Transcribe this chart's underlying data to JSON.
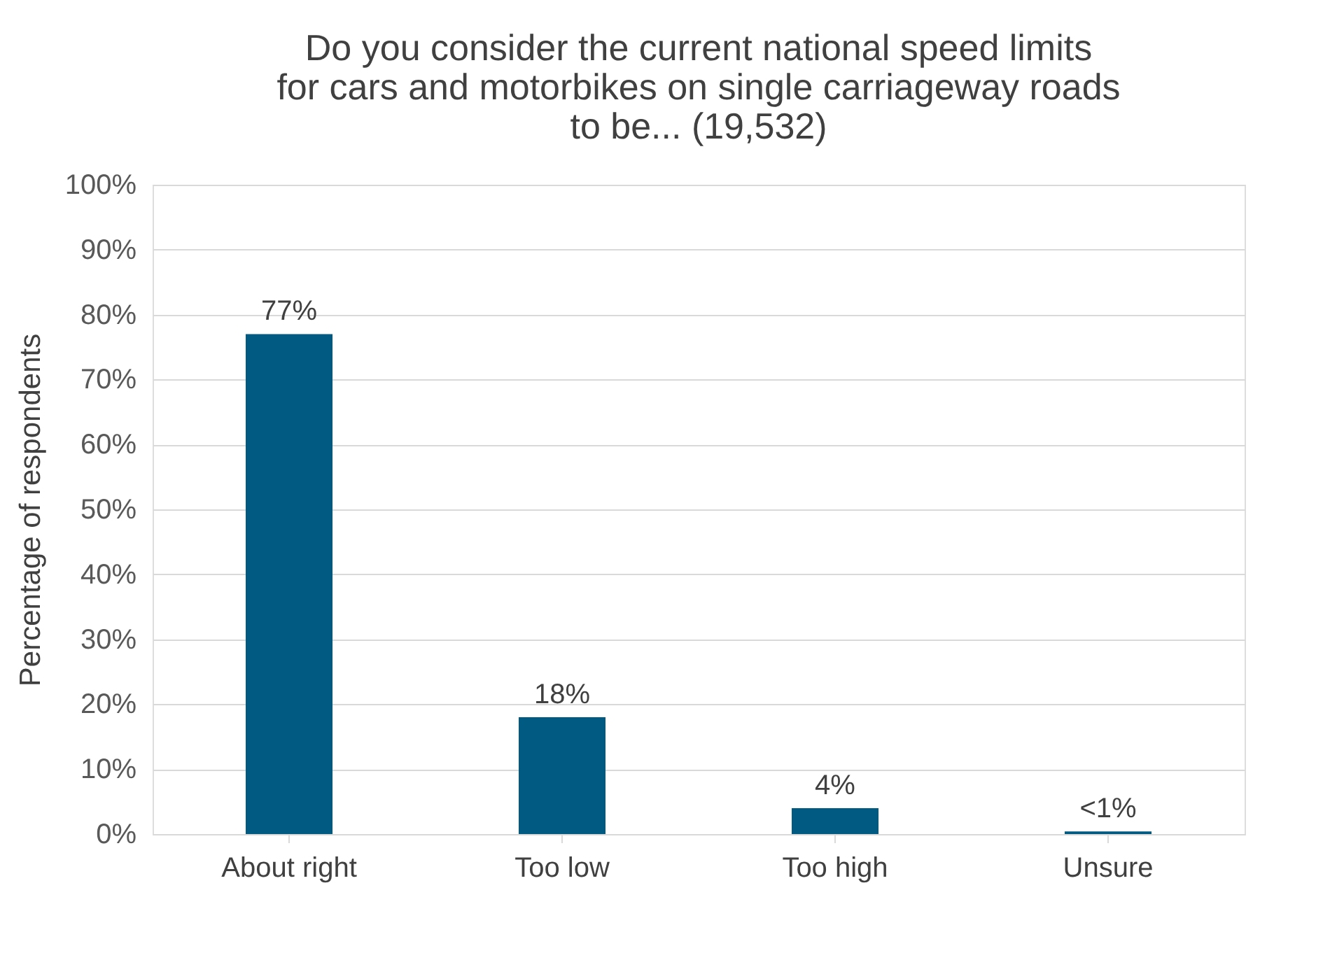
{
  "chart_data": {
    "type": "bar",
    "title": "Do you consider the current national speed limits for cars and motorbikes on single carriageway roads to be... (19,532)",
    "ylabel": "Percentage of respondents",
    "categories": [
      "About right",
      "Too low",
      "Too high",
      "Unsure"
    ],
    "values": [
      77,
      18,
      4,
      0.4
    ],
    "value_labels": [
      "77%",
      "18%",
      "4%",
      "<1%"
    ],
    "color": "#005a82",
    "ylim": [
      0,
      100
    ],
    "yticks": [
      {
        "value": 0,
        "label": "0%"
      },
      {
        "value": 10,
        "label": "10%"
      },
      {
        "value": 20,
        "label": "20%"
      },
      {
        "value": 30,
        "label": "30%"
      },
      {
        "value": 40,
        "label": "40%"
      },
      {
        "value": 50,
        "label": "50%"
      },
      {
        "value": 60,
        "label": "60%"
      },
      {
        "value": 70,
        "label": "70%"
      },
      {
        "value": 80,
        "label": "80%"
      },
      {
        "value": 90,
        "label": "90%"
      },
      {
        "value": 100,
        "label": "100%"
      }
    ],
    "grid": "y"
  }
}
